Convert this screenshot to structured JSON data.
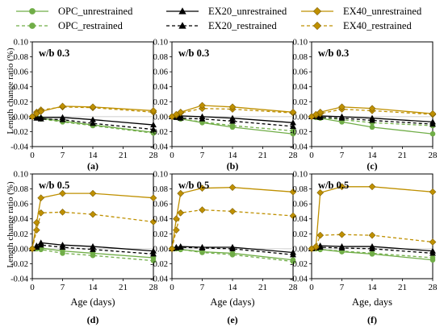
{
  "chart_data": {
    "type": "line",
    "legend": {
      "placement": "top",
      "entries": [
        {
          "key": "OPC_unrestrained",
          "label": "OPC_unrestrained",
          "color": "#70ad47",
          "dashed": false,
          "marker": "circle"
        },
        {
          "key": "OPC_restrained",
          "label": "OPC_restrained",
          "color": "#70ad47",
          "dashed": true,
          "marker": "circle"
        },
        {
          "key": "EX20_unrestrained",
          "label": "EX20_unrestrained",
          "color": "#000000",
          "dashed": false,
          "marker": "triangle"
        },
        {
          "key": "EX20_restrained",
          "label": "EX20_restrained",
          "color": "#000000",
          "dashed": true,
          "marker": "triangle"
        },
        {
          "key": "EX40_unrestrained",
          "label": "EX40_unrestrained",
          "color": "#bf9000",
          "dashed": false,
          "marker": "diamond"
        },
        {
          "key": "EX40_restrained",
          "label": "EX40_restrained",
          "color": "#bf9000",
          "dashed": true,
          "marker": "diamond"
        }
      ]
    },
    "ylabel": "Length change ratio (%)",
    "xlim": [
      0,
      28
    ],
    "ylim": [
      -0.04,
      0.1
    ],
    "x_ticks": [
      0,
      7,
      14,
      21,
      28
    ],
    "y_ticks": [
      "0.10",
      "0.08",
      "0.06",
      "0.04",
      "0.02",
      "0.00",
      "-0.02",
      "-0.04"
    ],
    "x": [
      0,
      1,
      2,
      7,
      14,
      28
    ],
    "panels": [
      {
        "annotation": "w/b 0.3",
        "caption": "(a)",
        "xlabel": "",
        "series": {
          "OPC_unrestrained": [
            0,
            -0.001,
            -0.002,
            -0.006,
            -0.011,
            -0.021
          ],
          "OPC_restrained": [
            0,
            -0.001,
            -0.003,
            -0.007,
            -0.012,
            -0.022
          ],
          "EX20_unrestrained": [
            0,
            0.0,
            -0.001,
            -0.001,
            -0.004,
            -0.011
          ],
          "EX20_restrained": [
            0,
            -0.002,
            -0.003,
            -0.004,
            -0.009,
            -0.017
          ],
          "EX40_unrestrained": [
            0,
            0.004,
            0.007,
            0.014,
            0.013,
            0.008
          ],
          "EX40_restrained": [
            0,
            0.006,
            0.009,
            0.013,
            0.012,
            0.006
          ]
        }
      },
      {
        "annotation": "w/b 0.3",
        "caption": "(b)",
        "xlabel": "",
        "series": {
          "OPC_unrestrained": [
            0,
            -0.001,
            -0.003,
            -0.008,
            -0.014,
            -0.023
          ],
          "OPC_restrained": [
            0,
            -0.001,
            -0.003,
            -0.007,
            -0.012,
            -0.019
          ],
          "EX20_unrestrained": [
            0,
            0.001,
            0.001,
            0.0,
            -0.002,
            -0.008
          ],
          "EX20_restrained": [
            0,
            -0.001,
            -0.002,
            -0.003,
            -0.006,
            -0.013
          ],
          "EX40_unrestrained": [
            0,
            0.003,
            0.006,
            0.015,
            0.013,
            0.006
          ],
          "EX40_restrained": [
            0,
            0.002,
            0.005,
            0.011,
            0.01,
            0.005
          ]
        }
      },
      {
        "annotation": "w/b 0.3",
        "caption": "(c)",
        "xlabel": "",
        "series": {
          "OPC_unrestrained": [
            0,
            -0.001,
            -0.002,
            -0.007,
            -0.014,
            -0.023
          ],
          "OPC_restrained": [
            0,
            -0.001,
            -0.001,
            -0.004,
            -0.008,
            -0.012
          ],
          "EX20_unrestrained": [
            0,
            0.001,
            0.001,
            0.0,
            -0.002,
            -0.007
          ],
          "EX20_restrained": [
            0,
            0.0,
            -0.001,
            -0.002,
            -0.005,
            -0.01
          ],
          "EX40_unrestrained": [
            0,
            0.003,
            0.006,
            0.013,
            0.011,
            0.004
          ],
          "EX40_restrained": [
            0,
            0.002,
            0.004,
            0.01,
            0.008,
            0.003
          ]
        }
      },
      {
        "annotation": "w/b 0.5",
        "caption": "(d)",
        "xlabel": "Age (days)",
        "series": {
          "OPC_unrestrained": [
            0,
            0.0,
            0.001,
            -0.003,
            -0.006,
            -0.012
          ],
          "OPC_restrained": [
            0,
            0.0,
            -0.001,
            -0.006,
            -0.009,
            -0.016
          ],
          "EX20_unrestrained": [
            0,
            0.004,
            0.008,
            0.005,
            0.003,
            -0.003
          ],
          "EX20_restrained": [
            0,
            0.002,
            0.005,
            0.002,
            -0.001,
            -0.007
          ],
          "EX40_unrestrained": [
            0,
            0.035,
            0.068,
            0.074,
            0.074,
            0.068
          ],
          "EX40_restrained": [
            0,
            0.025,
            0.048,
            0.049,
            0.046,
            0.036
          ]
        }
      },
      {
        "annotation": "w/b 0.5",
        "caption": "(e)",
        "xlabel": "Age (days)",
        "series": {
          "OPC_unrestrained": [
            0,
            0.0,
            -0.001,
            -0.004,
            -0.006,
            -0.015
          ],
          "OPC_restrained": [
            0,
            0.0,
            -0.001,
            -0.005,
            -0.008,
            -0.017
          ],
          "EX20_unrestrained": [
            0,
            0.002,
            0.003,
            0.002,
            0.002,
            -0.005
          ],
          "EX20_restrained": [
            0,
            0.001,
            0.002,
            0.001,
            0.0,
            -0.008
          ],
          "EX40_unrestrained": [
            0,
            0.04,
            0.074,
            0.081,
            0.082,
            0.076
          ],
          "EX40_restrained": [
            0,
            0.025,
            0.048,
            0.052,
            0.05,
            0.044
          ]
        }
      },
      {
        "annotation": "w/b 0.5",
        "caption": "(f)",
        "xlabel": "Age, days",
        "series": {
          "OPC_unrestrained": [
            0,
            0.0,
            -0.001,
            -0.004,
            -0.007,
            -0.015
          ],
          "OPC_restrained": [
            0,
            0.0,
            -0.001,
            -0.003,
            -0.006,
            -0.012
          ],
          "EX20_unrestrained": [
            0,
            0.002,
            0.004,
            0.003,
            0.003,
            -0.003
          ],
          "EX20_restrained": [
            0,
            0.001,
            0.002,
            0.001,
            0.0,
            -0.006
          ],
          "EX40_unrestrained": [
            0,
            0.003,
            0.075,
            0.083,
            0.083,
            0.076
          ],
          "EX40_restrained": [
            0,
            0.002,
            0.018,
            0.019,
            0.018,
            0.009
          ]
        }
      }
    ]
  }
}
